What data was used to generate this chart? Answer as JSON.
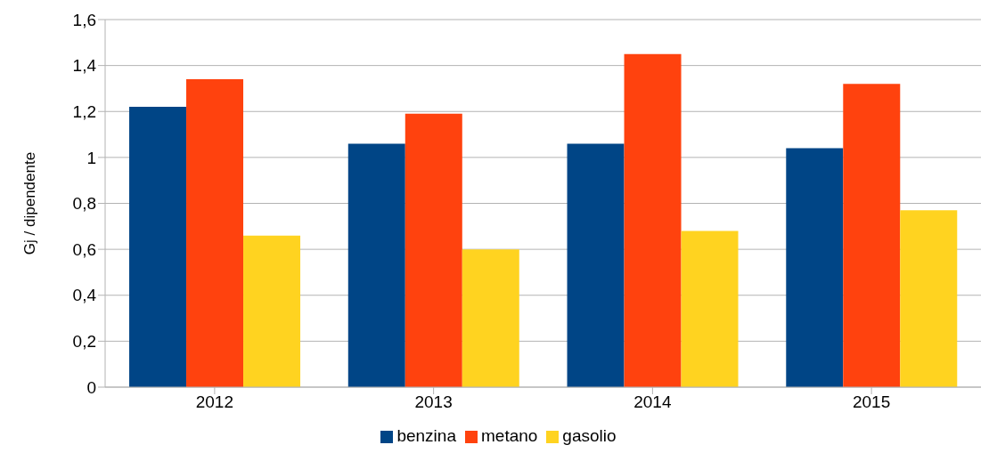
{
  "chart_data": {
    "type": "bar",
    "ylabel": "Gj / dipendente",
    "categories": [
      "2012",
      "2013",
      "2014",
      "2015"
    ],
    "series": [
      {
        "name": "benzina",
        "color": "#004586",
        "values": [
          1.22,
          1.06,
          1.06,
          1.04
        ]
      },
      {
        "name": "metano",
        "color": "#ff420e",
        "values": [
          1.34,
          1.19,
          1.45,
          1.32
        ]
      },
      {
        "name": "gasolio",
        "color": "#ffd320",
        "values": [
          0.66,
          0.6,
          0.68,
          0.77
        ]
      }
    ],
    "ylim": [
      0,
      1.6
    ],
    "yticks": [
      0,
      {
        "value": 0.2,
        "label": "0,2"
      },
      {
        "value": 0.4,
        "label": "0,4"
      },
      {
        "value": 0.6,
        "label": "0,6"
      },
      {
        "value": 0.8,
        "label": "0,8"
      },
      1,
      {
        "value": 1.2,
        "label": "1,2"
      },
      {
        "value": 1.4,
        "label": "1,4"
      },
      {
        "value": 1.6,
        "label": "1,6"
      }
    ],
    "grid": "y",
    "legend": "bottom"
  }
}
